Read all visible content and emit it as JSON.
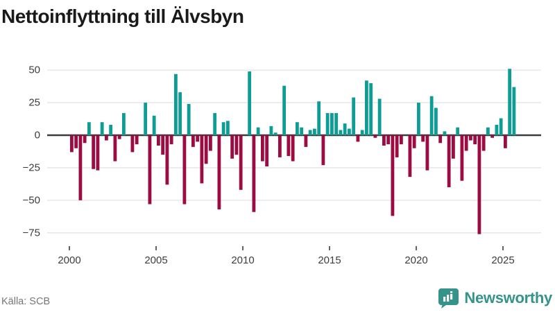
{
  "title": "Nettoinflyttning till Älvsbyn",
  "source": "Källa: SCB",
  "brand": {
    "name": "Newsworthy"
  },
  "colors": {
    "positive": "#0d9d95",
    "negative": "#9c0c42",
    "grid": "#e3e3e3",
    "zero_axis": "#3b3b3b",
    "tick_text": "#3c3c3c",
    "title_text": "#1a1a1a",
    "source_text": "#767676",
    "brand_teal": "#35938c"
  },
  "chart_data": {
    "type": "bar",
    "title": "Nettoinflyttning till Älvsbyn",
    "xlabel": "",
    "ylabel": "",
    "x_unit": "quarter",
    "start_period": "2000-Q1",
    "end_period": "2025-Q3",
    "x_tick_labels": [
      "2000",
      "2005",
      "2010",
      "2015",
      "2020",
      "2025"
    ],
    "y_ticks": [
      50,
      25,
      0,
      -25,
      -50,
      -75
    ],
    "y_tick_labels": [
      "50",
      "25",
      "0",
      "−25",
      "−50",
      "−75"
    ],
    "ylim": [
      -80,
      56
    ],
    "grid": true,
    "legend": false,
    "series": [
      {
        "name": "Nettoinflyttning",
        "values": [
          -13,
          -10,
          -50,
          -6,
          10,
          -26,
          -27,
          10,
          -4,
          8,
          -20,
          -3,
          17,
          0,
          -13,
          -7,
          0,
          25,
          -53,
          15,
          -8,
          -15,
          -38,
          -7,
          47,
          33,
          -53,
          24,
          -9,
          -5,
          -37,
          -22,
          -12,
          17,
          -57,
          10,
          11,
          -18,
          -15,
          -42,
          0,
          49,
          -59,
          6,
          -20,
          -24,
          7,
          2,
          -17,
          38,
          -16,
          -20,
          10,
          6,
          -9,
          4,
          5,
          26,
          -23,
          17,
          17,
          17,
          4,
          9,
          5,
          29,
          -5,
          4,
          42,
          40,
          -2,
          28,
          -8,
          -7,
          -62,
          -17,
          -7,
          0,
          -32,
          -10,
          25,
          -5,
          -27,
          30,
          21,
          -6,
          3,
          -40,
          -18,
          6,
          -35,
          -12,
          -4,
          -7,
          -76,
          -12,
          6,
          -2,
          8,
          13,
          -10,
          51,
          37
        ]
      }
    ]
  }
}
